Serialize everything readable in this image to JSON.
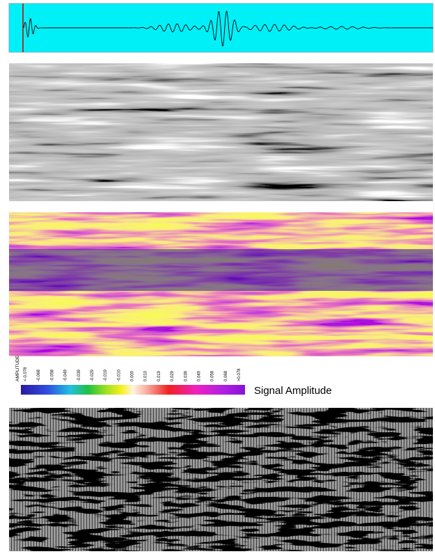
{
  "colorbar": {
    "title": "AMPLITUDE",
    "ticks": [
      "<-0.078",
      "-0.068",
      "-0.058",
      "-0.049",
      "-0.039",
      "-0.029",
      "-0.019",
      "-0.010",
      "0.000",
      "0.010",
      "0.019",
      "0.029",
      "0.039",
      "0.049",
      "0.058",
      "0.068",
      ">0.078"
    ],
    "label": "Signal Amplitude"
  }
}
